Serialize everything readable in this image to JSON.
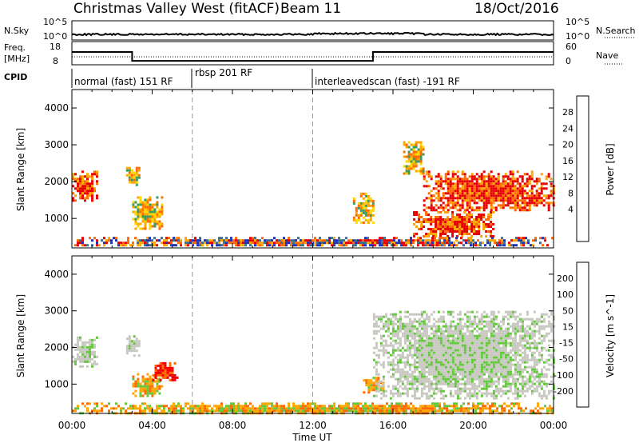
{
  "header": {
    "title": "Christmas Valley West (fitACF)",
    "beam": "Beam 11",
    "date": "18/Oct/2016"
  },
  "panels": {
    "nsky": {
      "label": "N.Sky",
      "left_ticks": [
        "10^5",
        "10^0"
      ],
      "right_label": "N.Search",
      "right_ticks": [
        "10^5",
        "10^0"
      ]
    },
    "freq": {
      "label_line1": "Freq.",
      "label_line2": "[MHz]",
      "left_ticks": [
        "18",
        "8"
      ],
      "right_label": "Nave",
      "right_ticks": [
        "60",
        "0"
      ],
      "steps_mhz": [
        {
          "from_hour": 0,
          "to_hour": 3.0,
          "level": 13.5
        },
        {
          "from_hour": 3.0,
          "to_hour": 15.0,
          "level": 9.7
        },
        {
          "from_hour": 15.0,
          "to_hour": 24.0,
          "level": 13.5
        }
      ]
    },
    "cpid": {
      "label": "CPID",
      "modes": [
        {
          "name": "normal (fast) 151 RF",
          "start_hour": 0,
          "end_hour": 6
        },
        {
          "name": "rbsp 201 RF",
          "start_hour": 6,
          "end_hour": 12
        },
        {
          "name": "interleavedscan (fast) -191 RF",
          "start_hour": 12,
          "end_hour": 24
        }
      ]
    }
  },
  "chart_data": [
    {
      "type": "heatmap",
      "quantity": "Power",
      "ylabel": "Slant Range [km]",
      "xlim": [
        0,
        24
      ],
      "ylim": [
        200,
        4500
      ],
      "yticks": [
        1000,
        2000,
        3000,
        4000
      ],
      "colorbar": {
        "label": "Power [dB]",
        "ticks": [
          "28",
          "24",
          "20",
          "16",
          "12",
          "8",
          "4"
        ],
        "colors": [
          "#e60000",
          "#ff6a00",
          "#ffa500",
          "#ffd700",
          "#d8e600",
          "#3c9b5a",
          "#3c6e8c",
          "#1e32b4",
          "#0000ff"
        ]
      },
      "regions": [
        {
          "hours": [
            0.0,
            1.2
          ],
          "range_km": [
            1500,
            2300
          ],
          "level": "high"
        },
        {
          "hours": [
            2.7,
            3.3
          ],
          "range_km": [
            1900,
            2400
          ],
          "level": "mid"
        },
        {
          "hours": [
            3.0,
            4.5
          ],
          "range_km": [
            700,
            1600
          ],
          "level": "mid"
        },
        {
          "hours": [
            14.0,
            15.0
          ],
          "range_km": [
            900,
            1700
          ],
          "level": "mid"
        },
        {
          "hours": [
            16.5,
            17.5
          ],
          "range_km": [
            2200,
            3100
          ],
          "level": "mid"
        },
        {
          "hours": [
            17.5,
            24.0
          ],
          "range_km": [
            1200,
            2300
          ],
          "level": "high"
        },
        {
          "hours": [
            17.0,
            21.0
          ],
          "range_km": [
            500,
            1200
          ],
          "level": "high"
        },
        {
          "hours": [
            0.0,
            24.0
          ],
          "range_km": [
            250,
            500
          ],
          "level": "low"
        }
      ]
    },
    {
      "type": "heatmap",
      "quantity": "Velocity",
      "ylabel": "Slant Range [km]",
      "xlabel": "Time UT",
      "xlim": [
        0,
        24
      ],
      "ylim": [
        200,
        4500
      ],
      "yticks": [
        1000,
        2000,
        3000,
        4000
      ],
      "xticks": [
        "00:00",
        "04:00",
        "08:00",
        "12:00",
        "16:00",
        "20:00",
        "00:00"
      ],
      "colorbar": {
        "label": "Velocity [m s^-1]",
        "ticks": [
          "200",
          "100",
          "50",
          "15",
          "-15",
          "-50",
          "-100",
          "-200"
        ],
        "colors": [
          "#2a3cb4",
          "#3c78b4",
          "#3c9b5a",
          "#64c83c",
          "#c8c8c0",
          "#ffa500",
          "#ff6a00",
          "#e60000",
          "#ff0000"
        ]
      },
      "regions": [
        {
          "hours": [
            0.0,
            1.2
          ],
          "range_km": [
            1500,
            2300
          ],
          "velocity": "ground"
        },
        {
          "hours": [
            2.7,
            3.3
          ],
          "range_km": [
            1800,
            2400
          ],
          "velocity": "ground"
        },
        {
          "hours": [
            3.0,
            4.5
          ],
          "range_km": [
            700,
            1300
          ],
          "velocity": -80
        },
        {
          "hours": [
            4.0,
            5.2
          ],
          "range_km": [
            1100,
            1600
          ],
          "velocity": -200
        },
        {
          "hours": [
            14.5,
            15.5
          ],
          "range_km": [
            800,
            1200
          ],
          "velocity": -60
        },
        {
          "hours": [
            15.0,
            24.0
          ],
          "range_km": [
            600,
            3000
          ],
          "velocity": "ground"
        },
        {
          "hours": [
            0.0,
            24.0
          ],
          "range_km": [
            200,
            500
          ],
          "velocity": -40
        }
      ]
    }
  ]
}
